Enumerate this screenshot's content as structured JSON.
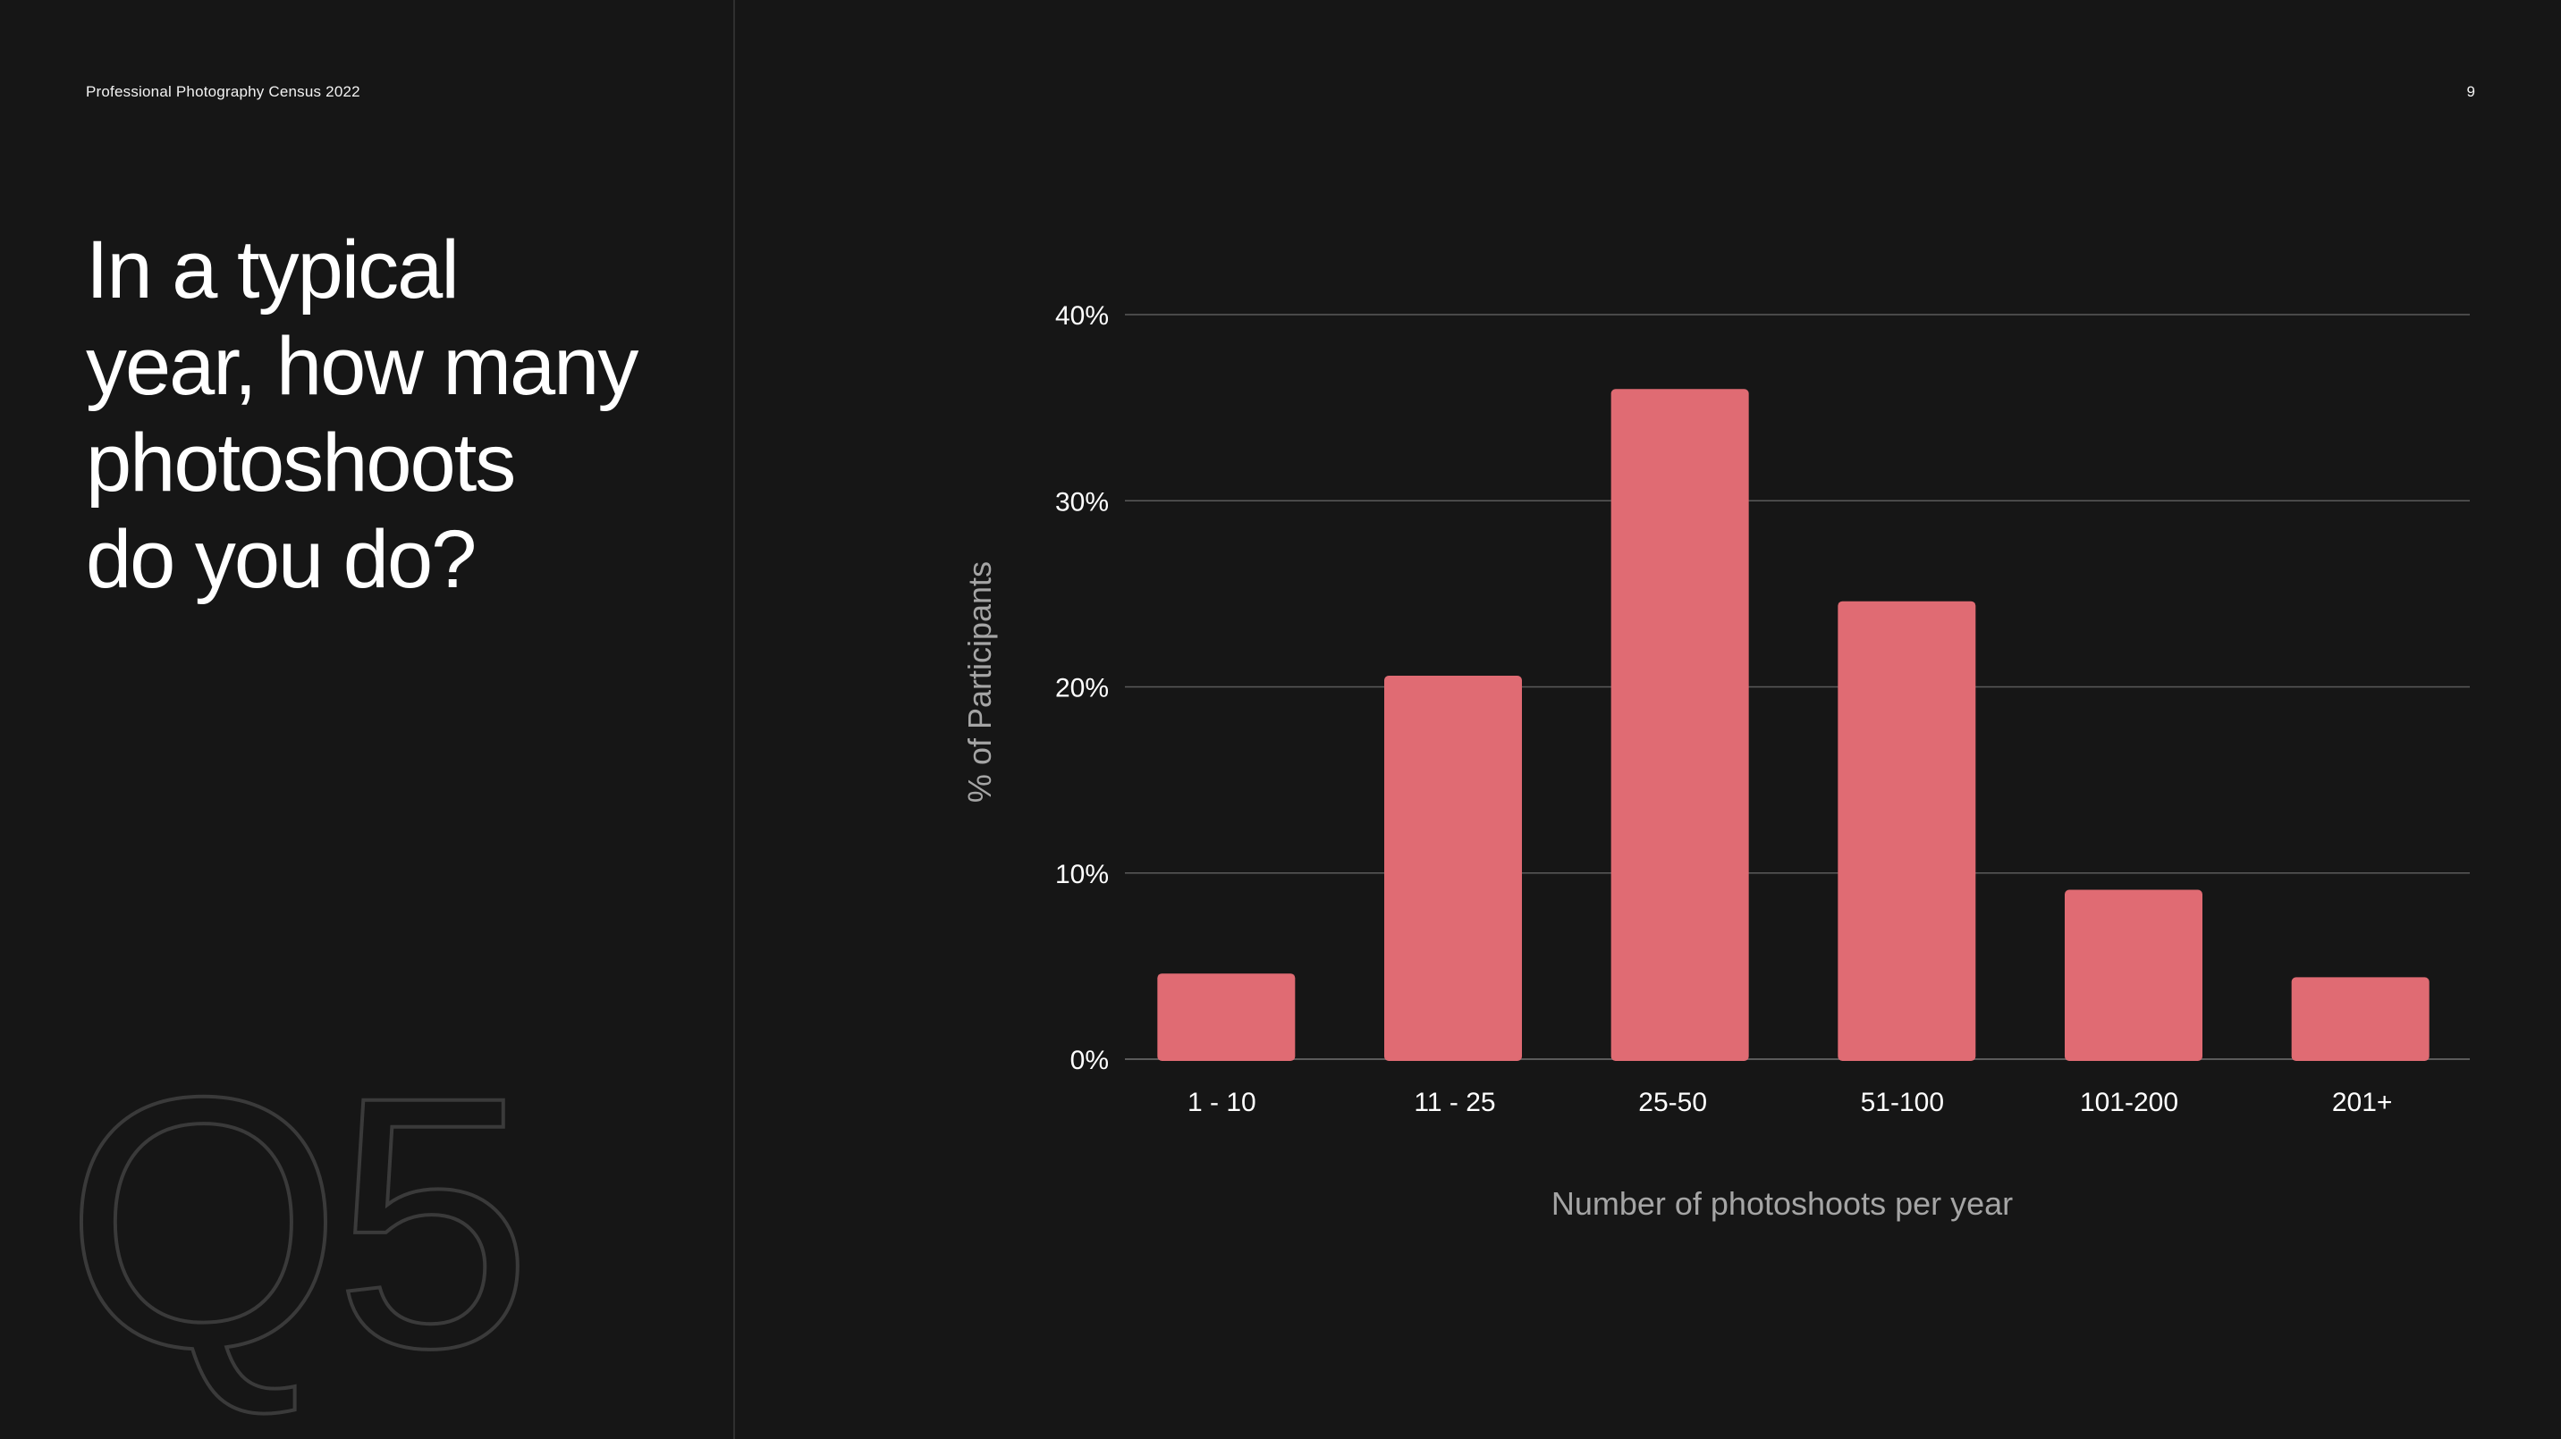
{
  "header": {
    "title": "Professional Photography Census 2022",
    "page_number": "9"
  },
  "question": {
    "lines": [
      "In a typical",
      "year, how many",
      "photoshoots",
      "do you do?"
    ],
    "number": "Q5"
  },
  "colors": {
    "background": "#161616",
    "bar": "#e06b73",
    "grid": "#5a5a5a",
    "axis_title": "#a5a5a5",
    "divider": "#2f2f2f"
  },
  "chart_data": {
    "type": "bar",
    "categories": [
      "1 - 10",
      "11 - 25",
      "25-50",
      "51-100",
      "101-200",
      "201+"
    ],
    "values": [
      4.6,
      20.6,
      36.0,
      24.6,
      9.1,
      4.4
    ],
    "unit": "%",
    "xlabel": "Number of photoshoots per year",
    "ylabel": "% of Participants",
    "ylim": [
      0,
      40
    ],
    "yticks": [
      0,
      10,
      20,
      30,
      40
    ],
    "ytick_labels": [
      "0%",
      "10%",
      "20%",
      "30%",
      "40%"
    ],
    "grid": true,
    "legend": "none"
  }
}
